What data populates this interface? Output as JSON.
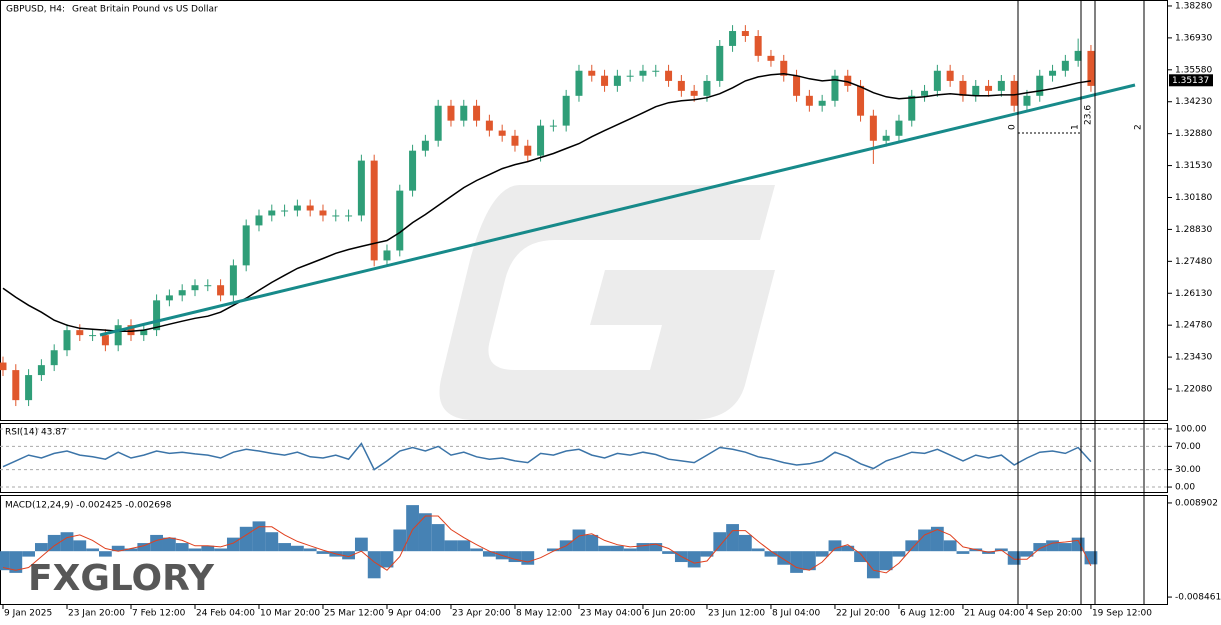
{
  "chart_data": [
    {
      "type": "candlestick",
      "symbol": "GBPUSD, H4:",
      "description": "Great Britain Pound vs US Dollar",
      "colors": {
        "up": "#2f9e78",
        "down": "#e0572c"
      },
      "open": [
        1.232,
        1.2288,
        1.2161,
        1.2267,
        1.2309,
        1.2372,
        1.2457,
        1.2436,
        1.2436,
        1.2393,
        1.2478,
        1.2436,
        1.2457,
        1.2583,
        1.2604,
        1.2626,
        1.2647,
        1.2647,
        1.2604,
        1.2731,
        1.29,
        1.2942,
        1.2963,
        1.2963,
        1.2984,
        1.2963,
        1.2942,
        1.2942,
        1.2942,
        1.3174,
        1.2752,
        1.2794,
        1.3047,
        1.3216,
        1.3258,
        1.3406,
        1.3343,
        1.3406,
        1.3343,
        1.3301,
        1.3279,
        1.3237,
        1.3195,
        1.3322,
        1.3322,
        1.3448,
        1.3554,
        1.3533,
        1.349,
        1.3533,
        1.3533,
        1.3554,
        1.3554,
        1.3511,
        1.3469,
        1.3448,
        1.3511,
        1.3659,
        1.3722,
        1.3701,
        1.3617,
        1.3596,
        1.3533,
        1.3448,
        1.3406,
        1.3427,
        1.3533,
        1.349,
        1.3364,
        1.3258,
        1.3279,
        1.3343,
        1.3448,
        1.3469,
        1.3554,
        1.3511,
        1.3448,
        1.349,
        1.3469,
        1.3511,
        1.3406,
        1.3448,
        1.3533,
        1.3554,
        1.3596,
        1.3638
      ],
      "high": [
        1.2345,
        1.2313,
        1.2292,
        1.2334,
        1.2397,
        1.2482,
        1.2482,
        1.2461,
        1.2461,
        1.2503,
        1.2503,
        1.2482,
        1.2608,
        1.2629,
        1.2651,
        1.2672,
        1.2672,
        1.2672,
        1.2756,
        1.2925,
        1.2967,
        1.2988,
        1.2988,
        1.3009,
        1.3009,
        1.2988,
        1.2967,
        1.2967,
        1.3199,
        1.3199,
        1.2819,
        1.3072,
        1.3241,
        1.3283,
        1.3431,
        1.3431,
        1.3431,
        1.3431,
        1.3368,
        1.3326,
        1.3304,
        1.3262,
        1.3347,
        1.3347,
        1.3473,
        1.3579,
        1.3579,
        1.3558,
        1.3558,
        1.3558,
        1.3579,
        1.3579,
        1.3579,
        1.3536,
        1.3494,
        1.3536,
        1.3684,
        1.3747,
        1.3747,
        1.3726,
        1.3642,
        1.3621,
        1.3558,
        1.3473,
        1.3452,
        1.3558,
        1.3558,
        1.3515,
        1.3389,
        1.3304,
        1.3368,
        1.3473,
        1.3494,
        1.3579,
        1.3579,
        1.3536,
        1.3515,
        1.3515,
        1.3536,
        1.3536,
        1.3473,
        1.3558,
        1.3579,
        1.3621,
        1.369,
        1.3663
      ],
      "low": [
        1.2263,
        1.2136,
        1.2136,
        1.2242,
        1.2284,
        1.2347,
        1.2411,
        1.2411,
        1.2368,
        1.2368,
        1.2411,
        1.2411,
        1.2432,
        1.2558,
        1.2579,
        1.2601,
        1.2622,
        1.2579,
        1.2579,
        1.2706,
        1.2875,
        1.2917,
        1.2938,
        1.2938,
        1.2938,
        1.2917,
        1.2917,
        1.2917,
        1.2917,
        1.2727,
        1.2727,
        1.2769,
        1.3022,
        1.3191,
        1.3233,
        1.3318,
        1.3318,
        1.3318,
        1.3276,
        1.3254,
        1.3212,
        1.317,
        1.317,
        1.3297,
        1.3297,
        1.3423,
        1.3508,
        1.3465,
        1.3465,
        1.3508,
        1.3508,
        1.3529,
        1.3486,
        1.3444,
        1.3423,
        1.3423,
        1.3486,
        1.3634,
        1.3676,
        1.3592,
        1.3571,
        1.3508,
        1.3423,
        1.3381,
        1.3381,
        1.3402,
        1.3465,
        1.3339,
        1.316,
        1.3233,
        1.3254,
        1.3318,
        1.3423,
        1.3444,
        1.3486,
        1.3423,
        1.3423,
        1.3444,
        1.3444,
        1.3381,
        1.3381,
        1.3423,
        1.3508,
        1.3529,
        1.3571,
        1.3465
      ],
      "close": [
        1.2288,
        1.2161,
        1.2267,
        1.2309,
        1.2372,
        1.2457,
        1.2436,
        1.2436,
        1.2393,
        1.2478,
        1.2436,
        1.2457,
        1.2583,
        1.2604,
        1.2626,
        1.2647,
        1.2647,
        1.2604,
        1.2731,
        1.29,
        1.2942,
        1.2963,
        1.2963,
        1.2984,
        1.2963,
        1.2942,
        1.2942,
        1.2942,
        1.3174,
        1.2752,
        1.2794,
        1.3047,
        1.3216,
        1.3258,
        1.3406,
        1.3343,
        1.3406,
        1.3343,
        1.3301,
        1.3279,
        1.3237,
        1.3195,
        1.3322,
        1.3322,
        1.3448,
        1.3554,
        1.3533,
        1.349,
        1.3533,
        1.3533,
        1.3554,
        1.3554,
        1.3511,
        1.3469,
        1.3448,
        1.3511,
        1.3659,
        1.3722,
        1.3701,
        1.3617,
        1.3596,
        1.3533,
        1.3448,
        1.3406,
        1.3427,
        1.3533,
        1.349,
        1.3364,
        1.3258,
        1.3279,
        1.3343,
        1.3448,
        1.3469,
        1.3554,
        1.3511,
        1.3448,
        1.349,
        1.3469,
        1.3511,
        1.3406,
        1.3448,
        1.3533,
        1.3554,
        1.3596,
        1.3638,
        1.349
      ],
      "ma": {
        "color": "#000000",
        "values": [
          1.2634,
          1.2596,
          1.2562,
          1.2533,
          1.2499,
          1.2478,
          1.2465,
          1.2461,
          1.2457,
          1.2452,
          1.2452,
          1.2457,
          1.2469,
          1.2482,
          1.2495,
          1.2507,
          1.2516,
          1.2533,
          1.2562,
          1.2592,
          1.2626,
          1.2659,
          1.2689,
          1.2718,
          1.2739,
          1.276,
          1.2782,
          1.2798,
          1.2811,
          1.2824,
          1.2836,
          1.287,
          1.2912,
          1.2946,
          1.2984,
          1.3022,
          1.306,
          1.309,
          1.3115,
          1.314,
          1.3157,
          1.317,
          1.3187,
          1.3204,
          1.3225,
          1.3246,
          1.3275,
          1.3301,
          1.3326,
          1.3351,
          1.3376,
          1.3402,
          1.3419,
          1.3427,
          1.3431,
          1.344,
          1.3457,
          1.3482,
          1.3511,
          1.3528,
          1.3537,
          1.3541,
          1.3533,
          1.352,
          1.3511,
          1.3516,
          1.3507,
          1.3486,
          1.3461,
          1.3444,
          1.3436,
          1.344,
          1.3444,
          1.3452,
          1.3457,
          1.3452,
          1.3448,
          1.3448,
          1.3452,
          1.3452,
          1.3461,
          1.3469,
          1.3478,
          1.349,
          1.3503,
          1.3511
        ]
      },
      "ylim": [
        1.2077,
        1.3849
      ],
      "yticks": [
        {
          "value": 1.3828,
          "label": "1.38280"
        },
        {
          "value": 1.3693,
          "label": "1.36930"
        },
        {
          "value": 1.3558,
          "label": "1.35580"
        },
        {
          "value": 1.3423,
          "label": "1.34230"
        },
        {
          "value": 1.3288,
          "label": "1.32880"
        },
        {
          "value": 1.3153,
          "label": "1.31530"
        },
        {
          "value": 1.3018,
          "label": "1.30180"
        },
        {
          "value": 1.2883,
          "label": "1.28830"
        },
        {
          "value": 1.2748,
          "label": "1.27480"
        },
        {
          "value": 1.2613,
          "label": "1.26130"
        },
        {
          "value": 1.2478,
          "label": "1.24780"
        },
        {
          "value": 1.2343,
          "label": "1.23430"
        },
        {
          "value": 1.2208,
          "label": "1.22080"
        }
      ],
      "last_price": 1.35137,
      "fib_labels": [
        "0",
        "1",
        "23.6",
        "2"
      ]
    },
    {
      "type": "line",
      "label": "RSI(14) 43.87",
      "color": "#3b74a8",
      "values": [
        35,
        45,
        55,
        50,
        58,
        62,
        55,
        52,
        48,
        60,
        50,
        55,
        62,
        58,
        60,
        57,
        55,
        50,
        60,
        65,
        62,
        58,
        55,
        60,
        52,
        50,
        55,
        48,
        75,
        30,
        45,
        62,
        68,
        62,
        70,
        55,
        60,
        52,
        48,
        50,
        45,
        42,
        58,
        55,
        62,
        65,
        55,
        50,
        58,
        55,
        60,
        56,
        48,
        45,
        42,
        55,
        68,
        65,
        60,
        52,
        48,
        42,
        38,
        40,
        45,
        60,
        52,
        40,
        32,
        45,
        52,
        60,
        58,
        65,
        55,
        45,
        55,
        50,
        55,
        38,
        50,
        60,
        62,
        58,
        68,
        43.87
      ],
      "ylim": [
        -8.5,
        108.5
      ],
      "yticks": [
        {
          "value": 100,
          "label": "100.00"
        },
        {
          "value": 70,
          "label": "70.00"
        },
        {
          "value": 30,
          "label": "30.00"
        },
        {
          "value": 0,
          "label": "0.00"
        }
      ]
    },
    {
      "type": "macd",
      "label": "MACD(12,24,9) -0.002425 -0.002698",
      "hist_color": "#4682b4",
      "signal_color": "#e0401e",
      "histogram": [
        -0.0035,
        -0.004,
        -0.001,
        0.0015,
        0.003,
        0.0035,
        0.002,
        0.0005,
        -0.001,
        0.001,
        0.0005,
        0.0015,
        0.003,
        0.0025,
        0.0015,
        0.0005,
        0.001,
        0.0005,
        0.0025,
        0.0045,
        0.0055,
        0.0035,
        0.0015,
        0.001,
        0.0005,
        -0.0005,
        -0.001,
        -0.0015,
        0.0025,
        -0.005,
        -0.003,
        0.004,
        0.0085,
        0.007,
        0.005,
        0.002,
        0.002,
        0.0005,
        -0.001,
        -0.0015,
        -0.002,
        -0.0025,
        0,
        0.0005,
        0.002,
        0.004,
        0.003,
        0.001,
        0.001,
        0.0005,
        0.0015,
        0.0015,
        -0.0005,
        -0.002,
        -0.003,
        -0.001,
        0.0035,
        0.005,
        0.003,
        0.0005,
        -0.001,
        -0.0025,
        -0.004,
        -0.0035,
        -0.001,
        0.002,
        0.001,
        -0.002,
        -0.005,
        -0.0035,
        -0.001,
        0.002,
        0.004,
        0.0045,
        0.002,
        -0.0005,
        0.0005,
        -0.0005,
        0.0005,
        -0.0025,
        -0.001,
        0.0015,
        0.002,
        0.0015,
        0.0025,
        -0.002425
      ],
      "signal": [
        -0.003,
        -0.0035,
        -0.003,
        -0.001,
        0.001,
        0.0025,
        0.003,
        0.002,
        0.0005,
        0,
        0.0005,
        0.001,
        0.002,
        0.0025,
        0.002,
        0.001,
        0.001,
        0.0008,
        0.0015,
        0.003,
        0.0045,
        0.0045,
        0.003,
        0.0018,
        0.001,
        0.0002,
        -0.0005,
        -0.001,
        0,
        -0.002,
        -0.0035,
        -0.001,
        0.004,
        0.0065,
        0.0065,
        0.004,
        0.0025,
        0.0012,
        0,
        -0.0008,
        -0.0015,
        -0.002,
        -0.0012,
        0,
        0.001,
        0.0028,
        0.0032,
        0.002,
        0.0012,
        0.0008,
        0.001,
        0.0013,
        0.0005,
        -0.001,
        -0.0022,
        -0.0018,
        0.001,
        0.0038,
        0.0038,
        0.0018,
        0,
        -0.0015,
        -0.003,
        -0.0035,
        -0.002,
        0.0005,
        0.0012,
        -0.0005,
        -0.0035,
        -0.004,
        -0.0022,
        0.0005,
        0.003,
        0.004,
        0.003,
        0.0008,
        0.0003,
        -0.0002,
        0.0002,
        -0.0015,
        -0.0015,
        0.0005,
        0.0015,
        0.0017,
        0.002,
        -0.002698
      ],
      "ylim": [
        -0.00974,
        0.010181
      ],
      "yticks": [
        0.008902,
        -0.008461
      ]
    }
  ],
  "x_axis": {
    "xlim": [
      -0.234,
      91.02
    ],
    "xticks": [
      {
        "value": 0,
        "label": "9 Jan 2025"
      },
      {
        "value": 5,
        "label": "23 Jan 20:00"
      },
      {
        "value": 10,
        "label": "7 Feb 12:00"
      },
      {
        "value": 15,
        "label": "24 Feb 04:00"
      },
      {
        "value": 20,
        "label": "10 Mar 20:00"
      },
      {
        "value": 25,
        "label": "25 Mar 12:00"
      },
      {
        "value": 30,
        "label": "9 Apr 04:00"
      },
      {
        "value": 35,
        "label": "23 Apr 20:00"
      },
      {
        "value": 40,
        "label": "8 May 12:00"
      },
      {
        "value": 45,
        "label": "23 May 04:00"
      },
      {
        "value": 50,
        "label": "6 Jun 20:00"
      },
      {
        "value": 55,
        "label": "23 Jun 12:00"
      },
      {
        "value": 60,
        "label": "8 Jul 04:00"
      },
      {
        "value": 65,
        "label": "22 Jul 20:00"
      },
      {
        "value": 70,
        "label": "6 Aug 12:00"
      },
      {
        "value": 75,
        "label": "21 Aug 04:00"
      },
      {
        "value": 80,
        "label": "4 Sep 20:00"
      },
      {
        "value": 85,
        "label": "19 Sep 12:00"
      }
    ]
  },
  "watermark": "FXGLORY"
}
